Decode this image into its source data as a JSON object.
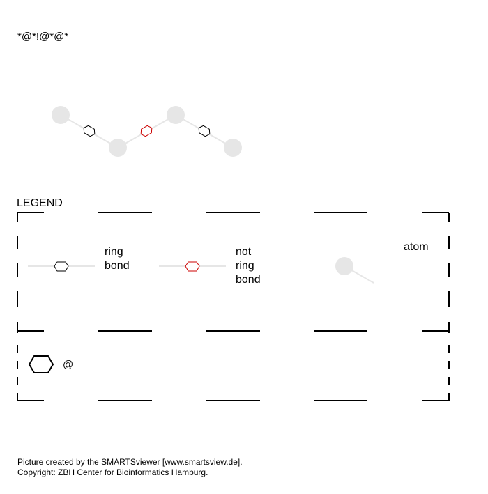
{
  "smarts": "*@*!@*@*",
  "legend": {
    "title": "LEGEND",
    "ring_bond_label": [
      "ring",
      "bond"
    ],
    "not_ring_bond_label": [
      "not",
      "ring",
      "bond"
    ],
    "atom_label": "atom",
    "ring_symbol_label": "@"
  },
  "colors": {
    "atom": "#e6e6e6",
    "bond_line": "#e6e6e6",
    "ring_bond": "#000000",
    "not_ring_bond": "#cc0000"
  },
  "footer": {
    "line1": "Picture created by the SMARTSviewer [www.smartsview.de].",
    "line2": "Copyright: ZBH Center for Bioinformatics Hamburg."
  }
}
